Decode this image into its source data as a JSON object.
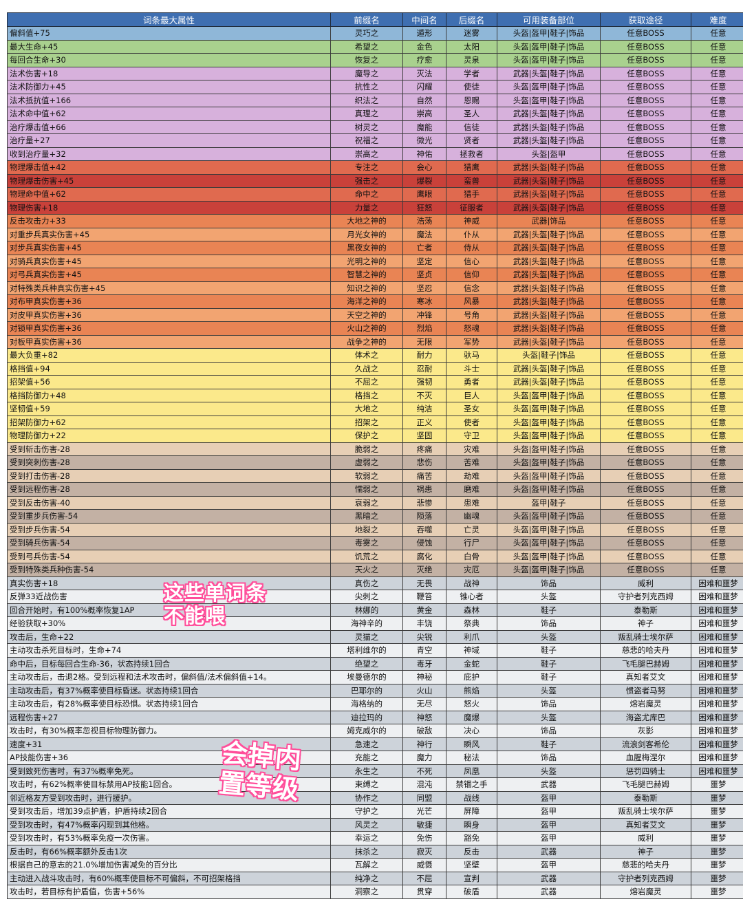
{
  "headers": [
    "词条最大属性",
    "前缀名",
    "中间名",
    "后缀名",
    "可用装备部位",
    "获取途径",
    "难度"
  ],
  "colors": {
    "blue": "#8fb7d8",
    "green": "#a9d18e",
    "violet": "#d7b1dc",
    "red": "#c9413a",
    "lightred": "#e06a4f",
    "orange": "#e98454",
    "lightorange": "#f2a471",
    "yellow": "#fbe98b",
    "beige": "#e7cfb5",
    "taupe": "#c3b1a4",
    "gray": "#cdd3da",
    "white": "#eef0f2"
  },
  "rows": [
    [
      "偏斜值+75",
      "灵巧之",
      "遁形",
      "迷雾",
      "头盔|盔甲|鞋子|饰品",
      "任意BOSS",
      "任意",
      "blue"
    ],
    [
      "最大生命+45",
      "希望之",
      "金色",
      "太阳",
      "头盔|盔甲|鞋子|饰品",
      "任意BOSS",
      "任意",
      "green"
    ],
    [
      "每回合生命+30",
      "恢复之",
      "疗愈",
      "灵泉",
      "头盔|盔甲|鞋子|饰品",
      "任意BOSS",
      "任意",
      "green"
    ],
    [
      "法术伤害+18",
      "魔导之",
      "灭法",
      "学者",
      "武器|头盔|鞋子|饰品",
      "任意BOSS",
      "任意",
      "violet"
    ],
    [
      "法术防御力+45",
      "抗性之",
      "闪耀",
      "使徒",
      "头盔|盔甲|鞋子|饰品",
      "任意BOSS",
      "任意",
      "violet"
    ],
    [
      "法术抵抗值+166",
      "织法之",
      "自然",
      "恩赐",
      "头盔|盔甲|鞋子|饰品",
      "任意BOSS",
      "任意",
      "violet"
    ],
    [
      "法术命中值+62",
      "真理之",
      "崇高",
      "圣人",
      "武器|头盔|鞋子|饰品",
      "任意BOSS",
      "任意",
      "violet"
    ],
    [
      "治疗爆击值+66",
      "树灵之",
      "魔能",
      "信徒",
      "武器|头盔|鞋子|饰品",
      "任意BOSS",
      "任意",
      "violet"
    ],
    [
      "治疗量+27",
      "祝福之",
      "微光",
      "贤者",
      "武器|头盔|鞋子|饰品",
      "任意BOSS",
      "任意",
      "violet"
    ],
    [
      "收到治疗量+32",
      "崇高之",
      "神佑",
      "拯救者",
      "头盔|盔甲",
      "任意BOSS",
      "任意",
      "violet"
    ],
    [
      "物理爆击值+42",
      "专注之",
      "会心",
      "猎鹰",
      "武器|头盔|鞋子|饰品",
      "任意BOSS",
      "任意",
      "lightred"
    ],
    [
      "物理爆击伤害+45",
      "强击之",
      "爆裂",
      "蛮兽",
      "武器|头盔|鞋子|饰品",
      "任意BOSS",
      "任意",
      "red"
    ],
    [
      "物理命中值+62",
      "命中之",
      "鹰眼",
      "猎手",
      "武器|头盔|鞋子|饰品",
      "任意BOSS",
      "任意",
      "lightred"
    ],
    [
      "物理伤害+18",
      "力量之",
      "狂怒",
      "征服者",
      "武器|头盔|鞋子|饰品",
      "任意BOSS",
      "任意",
      "red"
    ],
    [
      "反击攻击力+33",
      "大地之神的",
      "浩荡",
      "神威",
      "武器|饰品",
      "任意BOSS",
      "任意",
      "orange"
    ],
    [
      "对重步兵真实伤害+45",
      "月光女神的",
      "魔法",
      "仆从",
      "武器|头盔|鞋子|饰品",
      "任意BOSS",
      "任意",
      "lightorange"
    ],
    [
      "对步兵真实伤害+45",
      "黑夜女神的",
      "亡者",
      "侍从",
      "武器|头盔|鞋子|饰品",
      "任意BOSS",
      "任意",
      "orange"
    ],
    [
      "对骑兵真实伤害+45",
      "光明之神的",
      "坚定",
      "信心",
      "武器|头盔|鞋子|饰品",
      "任意BOSS",
      "任意",
      "lightorange"
    ],
    [
      "对弓兵真实伤害+45",
      "智慧之神的",
      "坚贞",
      "信仰",
      "武器|头盔|鞋子|饰品",
      "任意BOSS",
      "任意",
      "orange"
    ],
    [
      "对特殊类兵种真实伤害+45",
      "知识之神的",
      "坚忍",
      "信念",
      "武器|头盔|鞋子|饰品",
      "任意BOSS",
      "任意",
      "lightorange"
    ],
    [
      "对布甲真实伤害+36",
      "海洋之神的",
      "寒冰",
      "风暴",
      "武器|头盔|鞋子|饰品",
      "任意BOSS",
      "任意",
      "orange"
    ],
    [
      "对皮甲真实伤害+36",
      "天空之神的",
      "冲锋",
      "号角",
      "武器|头盔|鞋子|饰品",
      "任意BOSS",
      "任意",
      "lightorange"
    ],
    [
      "对锁甲真实伤害+36",
      "火山之神的",
      "烈焰",
      "怒魂",
      "武器|头盔|鞋子|饰品",
      "任意BOSS",
      "任意",
      "orange"
    ],
    [
      "对板甲真实伤害+36",
      "战争之神的",
      "无限",
      "军势",
      "武器|头盔|鞋子|饰品",
      "任意BOSS",
      "任意",
      "lightorange"
    ],
    [
      "最大负重+82",
      "体术之",
      "耐力",
      "驮马",
      "头盔|鞋子|饰品",
      "任意BOSS",
      "任意",
      "yellow"
    ],
    [
      "格挡值+94",
      "久战之",
      "忍耐",
      "斗士",
      "武器|头盔|鞋子|饰品",
      "任意BOSS",
      "任意",
      "yellow"
    ],
    [
      "招架值+56",
      "不屈之",
      "强韧",
      "勇者",
      "武器|头盔|鞋子|饰品",
      "任意BOSS",
      "任意",
      "yellow"
    ],
    [
      "格挡防御力+48",
      "格挡之",
      "不灭",
      "巨人",
      "头盔|盔甲|鞋子|饰品",
      "任意BOSS",
      "任意",
      "yellow"
    ],
    [
      "坚韧值+59",
      "大地之",
      "纯洁",
      "圣女",
      "头盔|盔甲|鞋子|饰品",
      "任意BOSS",
      "任意",
      "yellow"
    ],
    [
      "招架防御力+62",
      "招架之",
      "正义",
      "使者",
      "头盔|盔甲|鞋子|饰品",
      "任意BOSS",
      "任意",
      "yellow"
    ],
    [
      "物理防御力+22",
      "保护之",
      "坚固",
      "守卫",
      "头盔|盔甲|鞋子|饰品",
      "任意BOSS",
      "任意",
      "yellow"
    ],
    [
      "受到斩击伤害-28",
      "脆弱之",
      "疼痛",
      "灾难",
      "头盔|盔甲|鞋子|饰品",
      "任意BOSS",
      "任意",
      "beige"
    ],
    [
      "受到突刺伤害-28",
      "虚弱之",
      "悲伤",
      "苦难",
      "头盔|盔甲|鞋子|饰品",
      "任意BOSS",
      "任意",
      "taupe"
    ],
    [
      "受到打击伤害-28",
      "软弱之",
      "痛苦",
      "劫难",
      "头盔|盔甲|鞋子|饰品",
      "任意BOSS",
      "任意",
      "beige"
    ],
    [
      "受到远程伤害-28",
      "懦弱之",
      "祸患",
      "磨难",
      "头盔|盔甲|鞋子|饰品",
      "任意BOSS",
      "任意",
      "taupe"
    ],
    [
      "受到反击伤害-40",
      "衰弱之",
      "悲惨",
      "患难",
      "盔甲|鞋子",
      "任意BOSS",
      "任意",
      "beige"
    ],
    [
      "受到重步兵伤害-54",
      "黑暗之",
      "陨落",
      "幽魂",
      "头盔|盔甲|鞋子|饰品",
      "任意BOSS",
      "任意",
      "taupe"
    ],
    [
      "受到步兵伤害-54",
      "地裂之",
      "吞噬",
      "亡灵",
      "头盔|盔甲|鞋子|饰品",
      "任意BOSS",
      "任意",
      "beige"
    ],
    [
      "受到骑兵伤害-54",
      "毒雾之",
      "侵蚀",
      "行尸",
      "头盔|盔甲|鞋子|饰品",
      "任意BOSS",
      "任意",
      "taupe"
    ],
    [
      "受到弓兵伤害-54",
      "饥荒之",
      "腐化",
      "白骨",
      "头盔|盔甲|鞋子|饰品",
      "任意BOSS",
      "任意",
      "beige"
    ],
    [
      "受到特殊类兵种伤害-54",
      "天火之",
      "灭绝",
      "灾厄",
      "头盔|盔甲|鞋子|饰品",
      "任意BOSS",
      "任意",
      "taupe"
    ],
    [
      "真实伤害+18",
      "真伤之",
      "无畏",
      "战神",
      "饰品",
      "威利",
      "困难和噩梦",
      "gray"
    ],
    [
      "反弹33近战伤害",
      "尖刺之",
      "鞭笞",
      "锥心者",
      "头盔",
      "守护者列克西姆",
      "困难和噩梦",
      "white"
    ],
    [
      "回合开始时，有100%概率恢复1AP",
      "林娜的",
      "黄金",
      "森林",
      "鞋子",
      "泰勒斯",
      "困难和噩梦",
      "gray"
    ],
    [
      "经验获取+30%",
      "海神辛的",
      "丰饶",
      "祭典",
      "饰品",
      "神子",
      "困难和噩梦",
      "white"
    ],
    [
      "攻击后，生命+22",
      "灵猫之",
      "尖锐",
      "利爪",
      "头盔",
      "叛乱骑士埃尔萨",
      "困难和噩梦",
      "gray"
    ],
    [
      "主动攻击杀死目标时，生命+74",
      "塔利维尔的",
      "青空",
      "神域",
      "鞋子",
      "慈悲的哈夫丹",
      "困难和噩梦",
      "white"
    ],
    [
      "命中后，目标每回合生命-36，状态持续1回合",
      "绝望之",
      "毒牙",
      "金蛇",
      "鞋子",
      "飞毛腿巴赫姆",
      "困难和噩梦",
      "gray"
    ],
    [
      "主动攻击后，击退2格。受到远程和法术攻击时，偏斜值/法术偏斜值+14。",
      "埃曼德尔的",
      "神秘",
      "庇护",
      "鞋子",
      "真知者艾文",
      "困难和噩梦",
      "white"
    ],
    [
      "主动攻击后，有37%概率使目标昏迷。状态持续1回合",
      "巴耶尔的",
      "火山",
      "熊焰",
      "头盔",
      "惯盗者马努",
      "困难和噩梦",
      "gray"
    ],
    [
      "主动攻击后，有28%概率使目标恐惧。状态持续1回合",
      "海格纳的",
      "无尽",
      "怒火",
      "饰品",
      "熔岩魔灵",
      "困难和噩梦",
      "white"
    ],
    [
      "远程伤害+27",
      "迪拉玛的",
      "神怒",
      "魔爆",
      "头盔",
      "海盗尤库巴",
      "困难和噩梦",
      "gray"
    ],
    [
      "攻击时，有30%概率忽视目标物理防御力。",
      "姆克威尔的",
      "破敌",
      "决心",
      "饰品",
      "灰影",
      "困难和噩梦",
      "white"
    ],
    [
      "速度+31",
      "急速之",
      "神行",
      "瞬风",
      "鞋子",
      "流浪剑客希伦",
      "困难和噩梦",
      "gray"
    ],
    [
      "AP技能伤害+36",
      "充能之",
      "魔力",
      "秘法",
      "饰品",
      "血腥梅涅尔",
      "困难和噩梦",
      "white"
    ],
    [
      "受到致死伤害时，有37%概率免死。",
      "永生之",
      "不死",
      "凤凰",
      "头盔",
      "惩罚四骑士",
      "困难和噩梦",
      "gray"
    ],
    [
      "攻击时，有62%概率使目标禁用AP技能1回合。",
      "束缚之",
      "混沌",
      "禁锢之手",
      "武器",
      "飞毛腿巴赫姆",
      "噩梦",
      "white"
    ],
    [
      "邻近格友方受到攻击时，进行援护。",
      "协作之",
      "同盟",
      "战线",
      "盔甲",
      "泰勒斯",
      "噩梦",
      "gray"
    ],
    [
      "受到攻击后，增加39点护盾，护盾持续2回合",
      "守护之",
      "光芒",
      "屏障",
      "盔甲",
      "叛乱骑士埃尔萨",
      "噩梦",
      "white"
    ],
    [
      "受到攻击时，有47%概率闪现到其他格。",
      "风灵之",
      "敏捷",
      "瞬身",
      "盔甲",
      "真知者艾文",
      "噩梦",
      "gray"
    ],
    [
      "受到攻击时，有53%概率免疫一次伤害。",
      "幸运之",
      "免伤",
      "豁免",
      "盔甲",
      "威利",
      "噩梦",
      "white"
    ],
    [
      "反击时，有66%概率额外反击1次",
      "抹杀之",
      "寂灭",
      "反击",
      "武器",
      "神子",
      "噩梦",
      "gray"
    ],
    [
      "根据自己的意志的21.0%增加伤害减免的百分比",
      "瓦解之",
      "威慑",
      "坚壁",
      "盔甲",
      "慈悲的哈夫丹",
      "噩梦",
      "white"
    ],
    [
      "主动进入战斗攻击时，有60%概率使目标不可偏斜，不可招架格挡",
      "纯净之",
      "不屈",
      "宣判",
      "武器",
      "守护者列克西姆",
      "噩梦",
      "gray"
    ],
    [
      "攻击时，若目标有护盾值，伤害+56%",
      "洞察之",
      "贯穿",
      "破盾",
      "武器",
      "熔岩魔灵",
      "噩梦",
      "white"
    ]
  ],
  "overlays": {
    "note1_line1": "这些单词条",
    "note1_line2": "不能喂",
    "note2_line1": "会掉内",
    "note2_line2": "置等级"
  }
}
